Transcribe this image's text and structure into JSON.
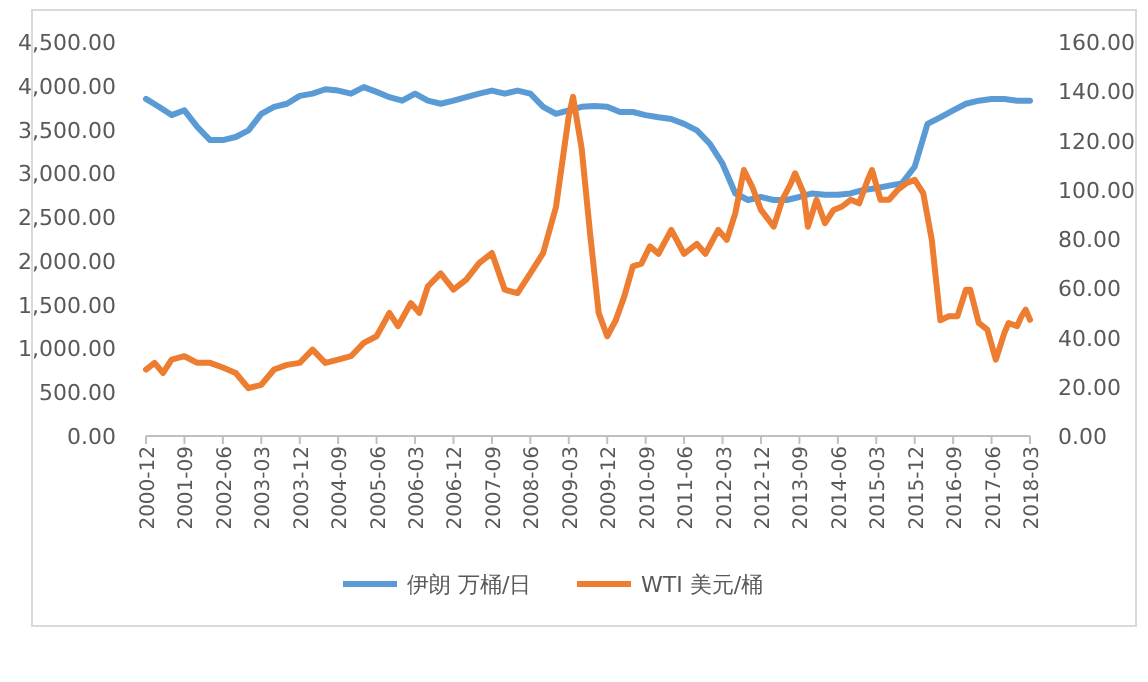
{
  "chart_data": {
    "type": "line",
    "legend": "bottom",
    "marker": "none",
    "line_style": "solid",
    "grid": false,
    "xlim": [
      "2000-12",
      "2018-03"
    ],
    "xticks": [
      "2000-12",
      "2001-09",
      "2002-06",
      "2003-03",
      "2003-12",
      "2004-09",
      "2005-06",
      "2006-03",
      "2006-12",
      "2007-09",
      "2008-06",
      "2009-03",
      "2009-12",
      "2010-09",
      "2011-06",
      "2012-03",
      "2012-12",
      "2013-09",
      "2014-06",
      "2015-03",
      "2015-12",
      "2016-09",
      "2017-06",
      "2018-03"
    ],
    "ylim": [
      0,
      4500
    ],
    "yticks": [
      {
        "value": 0,
        "label": "0.00"
      },
      {
        "value": 500,
        "label": "500.00"
      },
      {
        "value": 1000,
        "label": "1,000.00"
      },
      {
        "value": 1500,
        "label": "1,500.00"
      },
      {
        "value": 2000,
        "label": "2,000.00"
      },
      {
        "value": 2500,
        "label": "2,500.00"
      },
      {
        "value": 3000,
        "label": "3,000.00"
      },
      {
        "value": 3500,
        "label": "3,500.00"
      },
      {
        "value": 4000,
        "label": "4,000.00"
      },
      {
        "value": 4500,
        "label": "4,500.00"
      }
    ],
    "y2lim": [
      0,
      160
    ],
    "y2ticks": [
      {
        "value": 0,
        "label": "0.00"
      },
      {
        "value": 20,
        "label": "20.00"
      },
      {
        "value": 40,
        "label": "40.00"
      },
      {
        "value": 60,
        "label": "60.00"
      },
      {
        "value": 80,
        "label": "80.00"
      },
      {
        "value": 100,
        "label": "100.00"
      },
      {
        "value": 120,
        "label": "120.00"
      },
      {
        "value": 140,
        "label": "140.00"
      },
      {
        "value": 160,
        "label": "160.00"
      }
    ],
    "series": [
      {
        "name": "伊朗 万桶/日",
        "color": "#5b9bd5",
        "x": [
          "2000-12",
          "2001-03",
          "2001-06",
          "2001-09",
          "2001-12",
          "2002-03",
          "2002-06",
          "2002-09",
          "2002-12",
          "2003-03",
          "2003-06",
          "2003-09",
          "2003-12",
          "2004-03",
          "2004-06",
          "2004-09",
          "2004-12",
          "2005-03",
          "2005-06",
          "2005-09",
          "2005-12",
          "2006-03",
          "2006-06",
          "2006-09",
          "2006-12",
          "2007-03",
          "2007-06",
          "2007-09",
          "2007-12",
          "2008-03",
          "2008-06",
          "2008-09",
          "2008-12",
          "2009-03",
          "2009-06",
          "2009-09",
          "2009-12",
          "2010-03",
          "2010-06",
          "2010-09",
          "2010-12",
          "2011-03",
          "2011-06",
          "2011-09",
          "2011-12",
          "2012-03",
          "2012-06",
          "2012-09",
          "2012-12",
          "2013-03",
          "2013-06",
          "2013-09",
          "2013-12",
          "2014-03",
          "2014-06",
          "2014-09",
          "2014-12",
          "2015-03",
          "2015-06",
          "2015-09",
          "2015-12",
          "2016-03",
          "2016-06",
          "2016-09",
          "2016-12",
          "2017-03",
          "2017-06",
          "2017-09",
          "2017-12",
          "2018-03"
        ],
        "values": [
          3850,
          3760,
          3665,
          3720,
          3530,
          3380,
          3380,
          3415,
          3490,
          3680,
          3760,
          3795,
          3885,
          3910,
          3960,
          3945,
          3910,
          3985,
          3930,
          3870,
          3830,
          3910,
          3830,
          3795,
          3830,
          3870,
          3910,
          3945,
          3910,
          3945,
          3910,
          3760,
          3680,
          3720,
          3760,
          3770,
          3760,
          3700,
          3700,
          3665,
          3640,
          3620,
          3565,
          3490,
          3340,
          3110,
          2770,
          2695,
          2730,
          2695,
          2695,
          2730,
          2770,
          2755,
          2755,
          2770,
          2810,
          2830,
          2860,
          2885,
          3075,
          3565,
          3640,
          3720,
          3795,
          3830,
          3850,
          3850,
          3830,
          3830
        ]
      },
      {
        "name": "WTI 美元/桶",
        "color": "#ed7d31",
        "axis": "y2",
        "x": [
          "2000-12",
          "2001-02",
          "2001-04",
          "2001-06",
          "2001-09",
          "2001-12",
          "2002-03",
          "2002-06",
          "2002-09",
          "2002-12",
          "2003-03",
          "2003-06",
          "2003-09",
          "2003-12",
          "2004-03",
          "2004-06",
          "2004-09",
          "2004-12",
          "2005-03",
          "2005-06",
          "2005-09",
          "2005-11",
          "2006-02",
          "2006-04",
          "2006-06",
          "2006-09",
          "2006-12",
          "2007-03",
          "2007-06",
          "2007-09",
          "2007-12",
          "2008-03",
          "2008-06",
          "2008-09",
          "2008-12",
          "2009-03",
          "2009-04",
          "2009-06",
          "2009-08",
          "2009-10",
          "2009-12",
          "2010-02",
          "2010-04",
          "2010-06",
          "2010-08",
          "2010-10",
          "2010-12",
          "2011-03",
          "2011-06",
          "2011-09",
          "2011-11",
          "2012-02",
          "2012-04",
          "2012-06",
          "2012-08",
          "2012-10",
          "2012-12",
          "2013-03",
          "2013-05",
          "2013-07",
          "2013-08",
          "2013-10",
          "2013-11",
          "2014-01",
          "2014-03",
          "2014-05",
          "2014-07",
          "2014-09",
          "2014-11",
          "2015-01",
          "2015-02",
          "2015-04",
          "2015-06",
          "2015-08",
          "2015-10",
          "2015-12",
          "2016-02",
          "2016-04",
          "2016-06",
          "2016-08",
          "2016-10",
          "2016-12",
          "2017-01",
          "2017-03",
          "2017-05",
          "2017-07",
          "2017-09",
          "2017-10",
          "2017-12",
          "2018-01",
          "2018-02",
          "2018-03"
        ],
        "values": [
          27,
          29.7,
          25.6,
          31,
          32.4,
          29.7,
          29.7,
          27.8,
          25.6,
          19.4,
          20.8,
          27,
          28.9,
          29.7,
          35.1,
          29.7,
          31,
          32.4,
          37.8,
          40.5,
          50,
          44.6,
          54,
          50,
          60.8,
          66,
          59.4,
          63.5,
          70.2,
          74.3,
          59.4,
          58,
          66,
          74.3,
          93,
          130,
          137.7,
          117,
          82,
          50,
          40.5,
          47,
          56.7,
          68.9,
          70,
          77,
          74,
          83.7,
          74,
          78,
          74,
          83.7,
          79.7,
          90.5,
          108,
          101,
          91.8,
          85,
          95.9,
          102.6,
          106.7,
          98.6,
          85,
          95.9,
          86.4,
          91.8,
          93.2,
          95.9,
          94.5,
          104,
          108,
          95.9,
          95.9,
          99.9,
          102.6,
          104,
          98.6,
          79.7,
          47,
          48.6,
          48.6,
          59.4,
          59.4,
          45.9,
          43.2,
          31,
          41.9,
          45.9,
          44.6,
          48.6,
          51.3,
          47.2
        ]
      }
    ]
  }
}
